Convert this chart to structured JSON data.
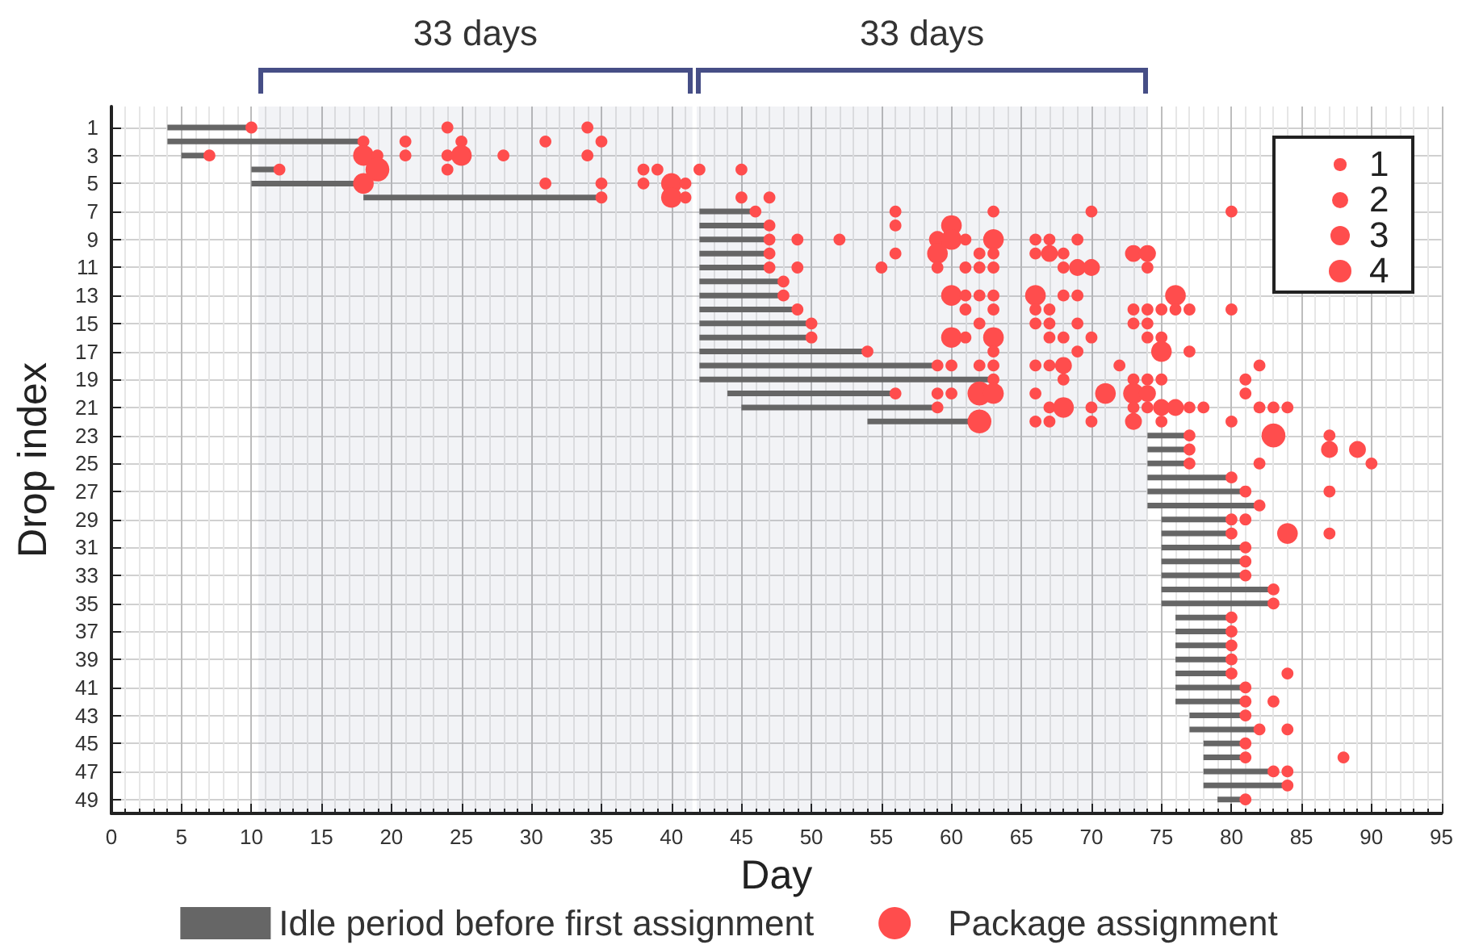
{
  "chart_data": {
    "type": "bubble",
    "xlabel": "Day",
    "ylabel": "Drop index",
    "xlim": [
      0,
      95
    ],
    "xticks": [
      0,
      5,
      10,
      15,
      20,
      25,
      30,
      35,
      40,
      45,
      50,
      55,
      60,
      65,
      70,
      75,
      80,
      85,
      90,
      95
    ],
    "ylim": [
      50,
      -0.5
    ],
    "yticks": [
      1,
      3,
      5,
      7,
      9,
      11,
      13,
      15,
      17,
      19,
      21,
      23,
      25,
      27,
      29,
      31,
      33,
      35,
      37,
      39,
      41,
      43,
      45,
      47,
      49
    ],
    "grid": true,
    "legend": "bottom",
    "size_legend": [
      1,
      2,
      3,
      4
    ],
    "bands": [
      {
        "axis": "x",
        "from": 10.5,
        "to": 41.5,
        "label": "33 days",
        "color": "#464e86"
      },
      {
        "axis": "x",
        "from": 41.8,
        "to": 74,
        "label": "33 days",
        "color": "#464e86"
      }
    ],
    "series": [
      {
        "name": "Idle period before first assignment",
        "type": "line",
        "color": "#666666",
        "x": [
          4,
          10
        ],
        "values": [
          1,
          1
        ]
      },
      {
        "type": "line",
        "color": "#666666",
        "x": [
          4,
          18
        ],
        "values": [
          2,
          2
        ]
      },
      {
        "type": "line",
        "color": "#666666",
        "x": [
          5,
          7
        ],
        "values": [
          3,
          3
        ]
      },
      {
        "type": "line",
        "color": "#666666",
        "x": [
          10,
          12
        ],
        "values": [
          4,
          4
        ]
      },
      {
        "type": "line",
        "color": "#666666",
        "x": [
          10,
          18
        ],
        "values": [
          5,
          5
        ]
      },
      {
        "type": "line",
        "color": "#666666",
        "x": [
          18,
          35
        ],
        "values": [
          6,
          6
        ]
      },
      {
        "type": "line",
        "color": "#666666",
        "x": [
          42,
          46
        ],
        "values": [
          7,
          7
        ]
      },
      {
        "type": "line",
        "color": "#666666",
        "x": [
          42,
          47
        ],
        "values": [
          8,
          8
        ]
      },
      {
        "type": "line",
        "color": "#666666",
        "x": [
          42,
          47
        ],
        "values": [
          9,
          9
        ]
      },
      {
        "type": "line",
        "color": "#666666",
        "x": [
          42,
          47
        ],
        "values": [
          10,
          10
        ]
      },
      {
        "type": "line",
        "color": "#666666",
        "x": [
          42,
          47
        ],
        "values": [
          11,
          11
        ]
      },
      {
        "type": "line",
        "color": "#666666",
        "x": [
          42,
          48
        ],
        "values": [
          12,
          12
        ]
      },
      {
        "type": "line",
        "color": "#666666",
        "x": [
          42,
          48
        ],
        "values": [
          13,
          13
        ]
      },
      {
        "type": "line",
        "color": "#666666",
        "x": [
          42,
          49
        ],
        "values": [
          14,
          14
        ]
      },
      {
        "type": "line",
        "color": "#666666",
        "x": [
          42,
          50
        ],
        "values": [
          15,
          15
        ]
      },
      {
        "type": "line",
        "color": "#666666",
        "x": [
          42,
          50
        ],
        "values": [
          16,
          16
        ]
      },
      {
        "type": "line",
        "color": "#666666",
        "x": [
          42,
          54
        ],
        "values": [
          17,
          17
        ]
      },
      {
        "type": "line",
        "color": "#666666",
        "x": [
          42,
          59
        ],
        "values": [
          18,
          18
        ]
      },
      {
        "type": "line",
        "color": "#666666",
        "x": [
          42,
          63
        ],
        "values": [
          19,
          19
        ]
      },
      {
        "type": "line",
        "color": "#666666",
        "x": [
          44,
          56
        ],
        "values": [
          20,
          20
        ]
      },
      {
        "type": "line",
        "color": "#666666",
        "x": [
          45,
          59
        ],
        "values": [
          21,
          21
        ]
      },
      {
        "type": "line",
        "color": "#666666",
        "x": [
          54,
          62
        ],
        "values": [
          22,
          22
        ]
      },
      {
        "type": "line",
        "color": "#666666",
        "x": [
          74,
          77
        ],
        "values": [
          23,
          23
        ]
      },
      {
        "type": "line",
        "color": "#666666",
        "x": [
          74,
          77
        ],
        "values": [
          24,
          24
        ]
      },
      {
        "type": "line",
        "color": "#666666",
        "x": [
          74,
          77
        ],
        "values": [
          25,
          25
        ]
      },
      {
        "type": "line",
        "color": "#666666",
        "x": [
          74,
          80
        ],
        "values": [
          26,
          26
        ]
      },
      {
        "type": "line",
        "color": "#666666",
        "x": [
          74,
          81
        ],
        "values": [
          27,
          27
        ]
      },
      {
        "type": "line",
        "color": "#666666",
        "x": [
          74,
          82
        ],
        "values": [
          28,
          28
        ]
      },
      {
        "type": "line",
        "color": "#666666",
        "x": [
          75,
          80
        ],
        "values": [
          29,
          29
        ]
      },
      {
        "type": "line",
        "color": "#666666",
        "x": [
          75,
          80
        ],
        "values": [
          30,
          30
        ]
      },
      {
        "type": "line",
        "color": "#666666",
        "x": [
          75,
          81
        ],
        "values": [
          31,
          31
        ]
      },
      {
        "type": "line",
        "color": "#666666",
        "x": [
          75,
          81
        ],
        "values": [
          32,
          32
        ]
      },
      {
        "type": "line",
        "color": "#666666",
        "x": [
          75,
          81
        ],
        "values": [
          33,
          33
        ]
      },
      {
        "type": "line",
        "color": "#666666",
        "x": [
          75,
          83
        ],
        "values": [
          34,
          34
        ]
      },
      {
        "type": "line",
        "color": "#666666",
        "x": [
          75,
          83
        ],
        "values": [
          35,
          35
        ]
      },
      {
        "type": "line",
        "color": "#666666",
        "x": [
          76,
          80
        ],
        "values": [
          36,
          36
        ]
      },
      {
        "type": "line",
        "color": "#666666",
        "x": [
          76,
          80
        ],
        "values": [
          37,
          37
        ]
      },
      {
        "type": "line",
        "color": "#666666",
        "x": [
          76,
          80
        ],
        "values": [
          38,
          38
        ]
      },
      {
        "type": "line",
        "color": "#666666",
        "x": [
          76,
          80
        ],
        "values": [
          39,
          39
        ]
      },
      {
        "type": "line",
        "color": "#666666",
        "x": [
          76,
          80
        ],
        "values": [
          40,
          40
        ]
      },
      {
        "type": "line",
        "color": "#666666",
        "x": [
          76,
          81
        ],
        "values": [
          41,
          41
        ]
      },
      {
        "type": "line",
        "color": "#666666",
        "x": [
          76,
          81
        ],
        "values": [
          42,
          42
        ]
      },
      {
        "type": "line",
        "color": "#666666",
        "x": [
          77,
          81
        ],
        "values": [
          43,
          43
        ]
      },
      {
        "type": "line",
        "color": "#666666",
        "x": [
          77,
          82
        ],
        "values": [
          44,
          44
        ]
      },
      {
        "type": "line",
        "color": "#666666",
        "x": [
          78,
          81
        ],
        "values": [
          45,
          45
        ]
      },
      {
        "type": "line",
        "color": "#666666",
        "x": [
          78,
          81
        ],
        "values": [
          46,
          46
        ]
      },
      {
        "type": "line",
        "color": "#666666",
        "x": [
          78,
          83
        ],
        "values": [
          47,
          47
        ]
      },
      {
        "type": "line",
        "color": "#666666",
        "x": [
          78,
          84
        ],
        "values": [
          48,
          48
        ]
      },
      {
        "type": "line",
        "color": "#666666",
        "x": [
          79,
          81
        ],
        "values": [
          49,
          49
        ]
      },
      {
        "name": "Package assignment",
        "color": "#ff4d4d",
        "x": [
          10,
          24,
          34,
          18,
          21,
          25,
          31,
          35,
          7,
          18,
          19,
          21,
          24,
          25,
          28,
          34,
          12,
          19,
          24,
          38,
          39,
          42,
          45,
          18,
          31,
          35,
          38,
          40,
          41,
          35,
          40,
          41,
          45,
          47,
          46,
          56,
          63,
          70,
          80,
          47,
          56,
          60,
          47,
          49,
          52,
          59,
          60,
          61,
          63,
          66,
          67,
          69,
          47,
          56,
          59,
          62,
          63,
          66,
          67,
          68,
          73,
          74,
          47,
          49,
          55,
          59,
          61,
          62,
          63,
          68,
          69,
          70,
          74,
          48,
          48,
          60,
          61,
          62,
          63,
          66,
          68,
          69,
          76,
          49,
          61,
          63,
          66,
          67,
          73,
          74,
          75,
          76,
          77,
          80,
          50,
          62,
          66,
          67,
          69,
          73,
          74,
          50,
          60,
          61,
          63,
          67,
          68,
          70,
          74,
          75,
          54,
          63,
          69,
          75,
          77,
          59,
          60,
          62,
          63,
          66,
          67,
          68,
          72,
          82,
          63,
          68,
          73,
          74,
          75,
          81,
          56,
          59,
          60,
          62,
          63,
          66,
          71,
          73,
          74,
          81,
          59,
          67,
          68,
          70,
          73,
          74,
          75,
          76,
          77,
          78,
          82,
          83,
          84,
          62,
          66,
          67,
          70,
          73,
          75,
          80,
          77,
          83,
          87,
          77,
          87,
          89,
          77,
          82,
          90,
          80,
          81,
          87,
          82,
          80,
          81,
          80,
          84,
          87,
          81,
          81,
          81,
          83,
          83,
          80,
          80,
          80,
          80,
          80,
          84,
          81,
          81,
          83,
          81,
          82,
          84,
          81,
          81,
          88,
          83,
          84,
          84,
          81
        ],
        "values": [
          1,
          1,
          1,
          2,
          2,
          2,
          2,
          2,
          3,
          3,
          3,
          3,
          3,
          3,
          3,
          3,
          4,
          4,
          4,
          4,
          4,
          4,
          4,
          5,
          5,
          5,
          5,
          5,
          5,
          6,
          6,
          6,
          6,
          6,
          7,
          7,
          7,
          7,
          7,
          8,
          8,
          8,
          9,
          9,
          9,
          9,
          9,
          9,
          9,
          9,
          9,
          9,
          10,
          10,
          10,
          10,
          10,
          10,
          10,
          10,
          10,
          10,
          11,
          11,
          11,
          11,
          11,
          11,
          11,
          11,
          11,
          11,
          11,
          12,
          13,
          13,
          13,
          13,
          13,
          13,
          13,
          13,
          13,
          14,
          14,
          14,
          14,
          14,
          14,
          14,
          14,
          14,
          14,
          14,
          15,
          15,
          15,
          15,
          15,
          15,
          15,
          16,
          16,
          16,
          16,
          16,
          16,
          16,
          16,
          16,
          17,
          17,
          17,
          17,
          17,
          18,
          18,
          18,
          18,
          18,
          18,
          18,
          18,
          18,
          19,
          19,
          19,
          19,
          19,
          19,
          20,
          20,
          20,
          20,
          20,
          20,
          20,
          20,
          20,
          20,
          21,
          21,
          21,
          21,
          21,
          21,
          21,
          21,
          21,
          21,
          21,
          21,
          21,
          22,
          22,
          22,
          22,
          22,
          22,
          22,
          23,
          23,
          23,
          24,
          24,
          24,
          25,
          25,
          25,
          26,
          27,
          27,
          28,
          29,
          29,
          30,
          30,
          30,
          31,
          32,
          33,
          34,
          35,
          36,
          37,
          38,
          39,
          40,
          40,
          41,
          42,
          42,
          43,
          44,
          44,
          45,
          46,
          46,
          47,
          47,
          48,
          49
        ],
        "sizes": [
          1,
          1,
          1,
          1,
          1,
          1,
          1,
          1,
          1,
          3,
          1,
          1,
          1,
          3,
          1,
          1,
          1,
          4,
          1,
          1,
          1,
          1,
          1,
          3,
          1,
          1,
          1,
          3,
          1,
          1,
          3,
          1,
          1,
          1,
          1,
          1,
          1,
          1,
          1,
          1,
          1,
          3,
          1,
          1,
          1,
          2,
          3,
          1,
          3,
          1,
          1,
          1,
          1,
          1,
          3,
          1,
          1,
          1,
          2,
          1,
          2,
          2,
          1,
          1,
          1,
          1,
          1,
          1,
          1,
          1,
          2,
          2,
          1,
          1,
          1,
          3,
          1,
          1,
          1,
          3,
          1,
          1,
          3,
          1,
          1,
          1,
          1,
          1,
          1,
          1,
          1,
          1,
          1,
          1,
          1,
          1,
          1,
          1,
          1,
          1,
          1,
          1,
          3,
          1,
          3,
          1,
          1,
          1,
          1,
          1,
          1,
          1,
          1,
          3,
          1,
          1,
          1,
          1,
          1,
          1,
          1,
          2,
          1,
          1,
          1,
          1,
          1,
          1,
          1,
          1,
          1,
          1,
          1,
          4,
          3,
          1,
          3,
          3,
          2,
          1,
          1,
          1,
          3,
          1,
          1,
          1,
          2,
          2,
          1,
          1,
          1,
          1,
          1,
          4,
          1,
          1,
          1,
          2,
          1,
          1,
          1,
          4,
          1,
          1,
          2,
          2,
          1,
          1,
          1,
          1,
          1,
          1,
          1,
          1,
          1,
          1,
          3,
          1,
          1,
          1,
          1,
          1,
          1,
          1,
          1,
          1,
          1,
          1,
          1,
          1,
          1,
          1,
          1,
          1,
          1,
          1,
          1,
          1,
          1,
          1,
          1,
          1
        ]
      }
    ]
  }
}
